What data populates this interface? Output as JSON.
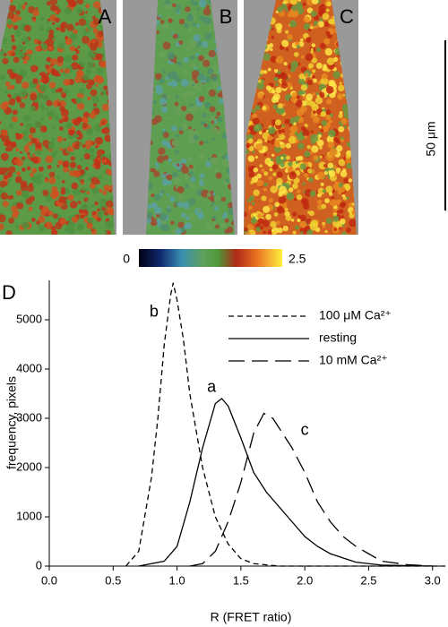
{
  "panels": [
    {
      "label": "A"
    },
    {
      "label": "B"
    },
    {
      "label": "C"
    }
  ],
  "scale_bar": {
    "label": "50 μm"
  },
  "colorbar": {
    "min": 0,
    "max": 2.5
  },
  "chart_data": {
    "type": "line",
    "panel_label": "D",
    "xlabel": "R (FRET ratio)",
    "ylabel": "frequency, pixels",
    "xlim": [
      0,
      3.1
    ],
    "xticks": [
      {
        "value": 0,
        "label": "0.0"
      },
      0.5,
      {
        "value": 1,
        "label": "1.0"
      },
      1.5,
      {
        "value": 2,
        "label": "2.0"
      },
      2.5,
      {
        "value": 3,
        "label": "3.0"
      }
    ],
    "ylim": [
      0,
      5800
    ],
    "yticks": [
      0,
      1000,
      2000,
      3000,
      4000,
      5000
    ],
    "series": [
      {
        "name": "100 μM Ca²⁺",
        "annotation": "b",
        "color": "#000",
        "dash": "6,4",
        "x": [
          0.6,
          0.7,
          0.8,
          0.85,
          0.9,
          0.95,
          0.97,
          1.0,
          1.05,
          1.1,
          1.2,
          1.3,
          1.4,
          1.5,
          1.6,
          1.8,
          3.1
        ],
        "values": [
          0,
          300,
          1800,
          3000,
          4500,
          5500,
          5750,
          5400,
          4600,
          3500,
          2000,
          1000,
          450,
          150,
          50,
          0,
          0
        ]
      },
      {
        "name": "resting",
        "annotation": "a",
        "color": "#000",
        "dash": "none",
        "x": [
          0.7,
          0.9,
          1.0,
          1.1,
          1.2,
          1.3,
          1.35,
          1.4,
          1.5,
          1.6,
          1.7,
          1.8,
          1.9,
          2.0,
          2.1,
          2.2,
          2.4,
          2.6,
          3.0
        ],
        "values": [
          0,
          100,
          400,
          1300,
          2400,
          3300,
          3400,
          3250,
          2600,
          1900,
          1500,
          1200,
          900,
          600,
          400,
          250,
          80,
          20,
          0
        ]
      },
      {
        "name": "10 mM Ca²⁺",
        "annotation": "c",
        "color": "#000",
        "dash": "18,8",
        "x": [
          1.1,
          1.2,
          1.3,
          1.4,
          1.5,
          1.6,
          1.68,
          1.75,
          1.8,
          1.9,
          2.0,
          2.1,
          2.2,
          2.3,
          2.4,
          2.5,
          2.6,
          2.8,
          3.0
        ],
        "values": [
          0,
          50,
          300,
          900,
          1700,
          2700,
          3100,
          3000,
          2800,
          2400,
          1900,
          1300,
          900,
          600,
          400,
          250,
          100,
          30,
          0
        ]
      }
    ]
  }
}
